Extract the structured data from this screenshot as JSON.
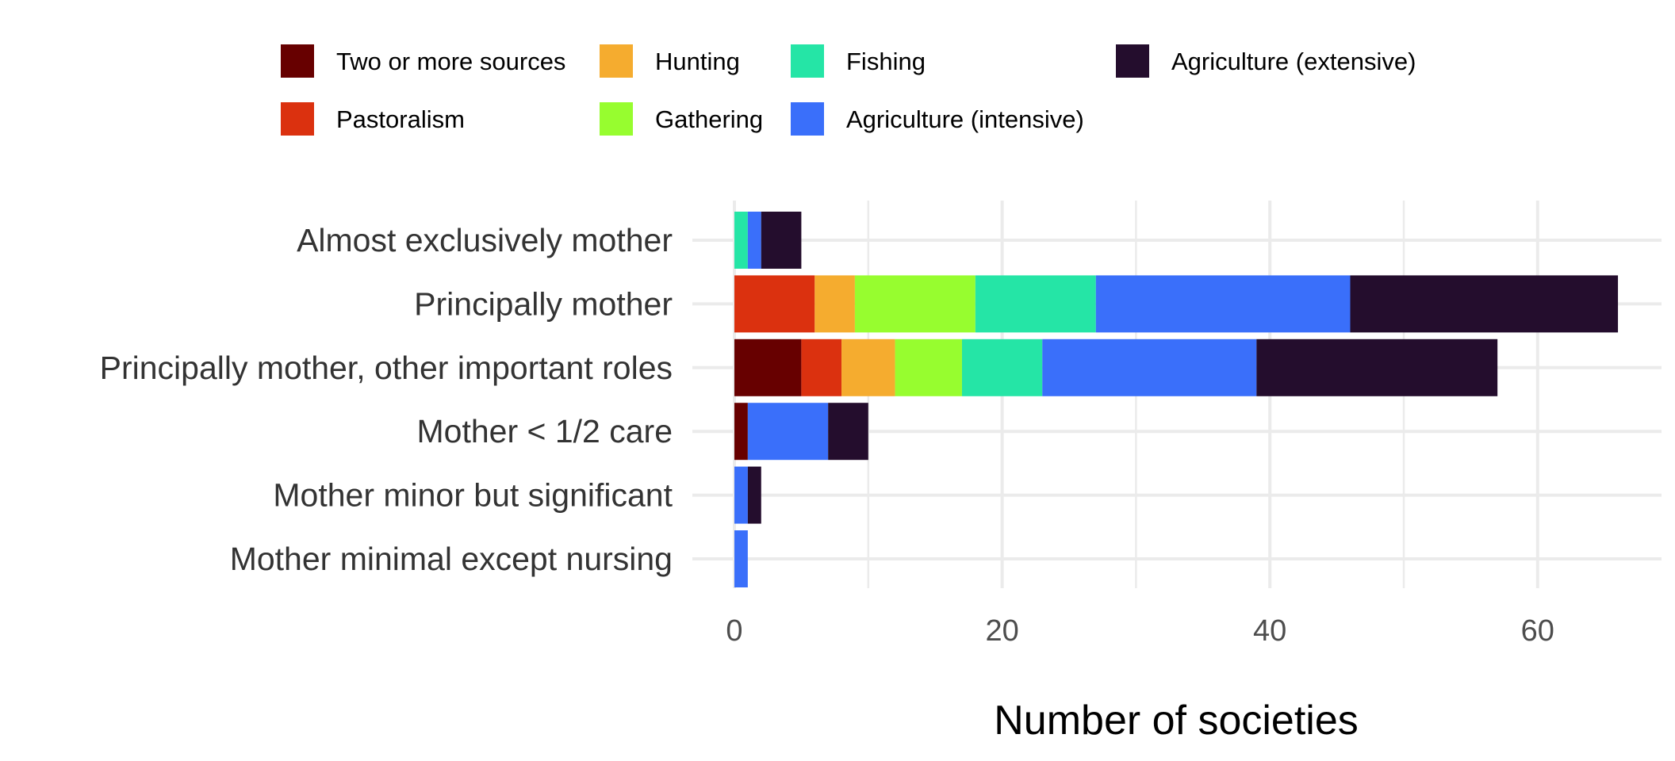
{
  "chart_data": {
    "type": "bar",
    "orientation": "horizontal",
    "stacked": true,
    "title": "",
    "xlabel": "Number of societies",
    "ylabel": "",
    "xlim": [
      0,
      69
    ],
    "xticks": [
      0,
      20,
      40,
      60
    ],
    "tick_labels": [
      "0",
      "20",
      "40",
      "60"
    ],
    "grid": true,
    "legend_position": "top",
    "categories": [
      "Almost exclusively mother",
      "Principally mother",
      "Principally mother, other important roles",
      "Mother < 1/2 care",
      "Mother minor but significant",
      "Mother minimal except nursing"
    ],
    "series": [
      {
        "name": "Two or more sources",
        "color": "#670000",
        "values": [
          0,
          0,
          5,
          1,
          0,
          0
        ]
      },
      {
        "name": "Pastoralism",
        "color": "#db310f",
        "values": [
          0,
          6,
          3,
          0,
          0,
          0
        ]
      },
      {
        "name": "Hunting",
        "color": "#f5ac2f",
        "values": [
          0,
          3,
          4,
          0,
          0,
          0
        ]
      },
      {
        "name": "Gathering",
        "color": "#97fd2f",
        "values": [
          0,
          9,
          5,
          0,
          0,
          0
        ]
      },
      {
        "name": "Fishing",
        "color": "#25e5a6",
        "values": [
          1,
          9,
          6,
          0,
          0,
          0
        ]
      },
      {
        "name": "Agriculture (intensive)",
        "color": "#3a6ffa",
        "values": [
          1,
          19,
          16,
          6,
          1,
          1
        ]
      },
      {
        "name": "Agriculture (extensive)",
        "color": "#240d2d",
        "values": [
          3,
          20,
          18,
          3,
          1,
          0
        ]
      }
    ],
    "legend_order": [
      "Two or more sources",
      "Pastoralism",
      "Hunting",
      "Gathering",
      "Fishing",
      "Agriculture (intensive)",
      "Agriculture (extensive)"
    ]
  }
}
